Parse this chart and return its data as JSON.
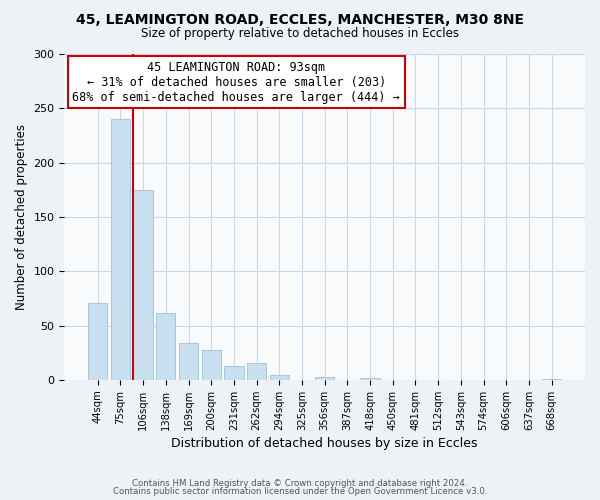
{
  "title": "45, LEAMINGTON ROAD, ECCLES, MANCHESTER, M30 8NE",
  "subtitle": "Size of property relative to detached houses in Eccles",
  "xlabel": "Distribution of detached houses by size in Eccles",
  "ylabel": "Number of detached properties",
  "bar_labels": [
    "44sqm",
    "75sqm",
    "106sqm",
    "138sqm",
    "169sqm",
    "200sqm",
    "231sqm",
    "262sqm",
    "294sqm",
    "325sqm",
    "356sqm",
    "387sqm",
    "418sqm",
    "450sqm",
    "481sqm",
    "512sqm",
    "543sqm",
    "574sqm",
    "606sqm",
    "637sqm",
    "668sqm"
  ],
  "bar_values": [
    71,
    240,
    175,
    62,
    34,
    28,
    13,
    16,
    5,
    0,
    3,
    0,
    2,
    0,
    0,
    0,
    0,
    0,
    0,
    0,
    1
  ],
  "bar_color": "#c8dff0",
  "bar_edge_color": "#a0c0dc",
  "ylim": [
    0,
    300
  ],
  "yticks": [
    0,
    50,
    100,
    150,
    200,
    250,
    300
  ],
  "vline_x_index": 2,
  "vline_color": "#cc0000",
  "annotation_title": "45 LEAMINGTON ROAD: 93sqm",
  "annotation_line1": "← 31% of detached houses are smaller (203)",
  "annotation_line2": "68% of semi-detached houses are larger (444) →",
  "annotation_box_color": "#ffffff",
  "annotation_box_edge_color": "#cc0000",
  "footer1": "Contains HM Land Registry data © Crown copyright and database right 2024.",
  "footer2": "Contains public sector information licensed under the Open Government Licence v3.0.",
  "background_color": "#edf2f7",
  "plot_background_color": "#f8fafc",
  "grid_color": "#c8d8e8"
}
